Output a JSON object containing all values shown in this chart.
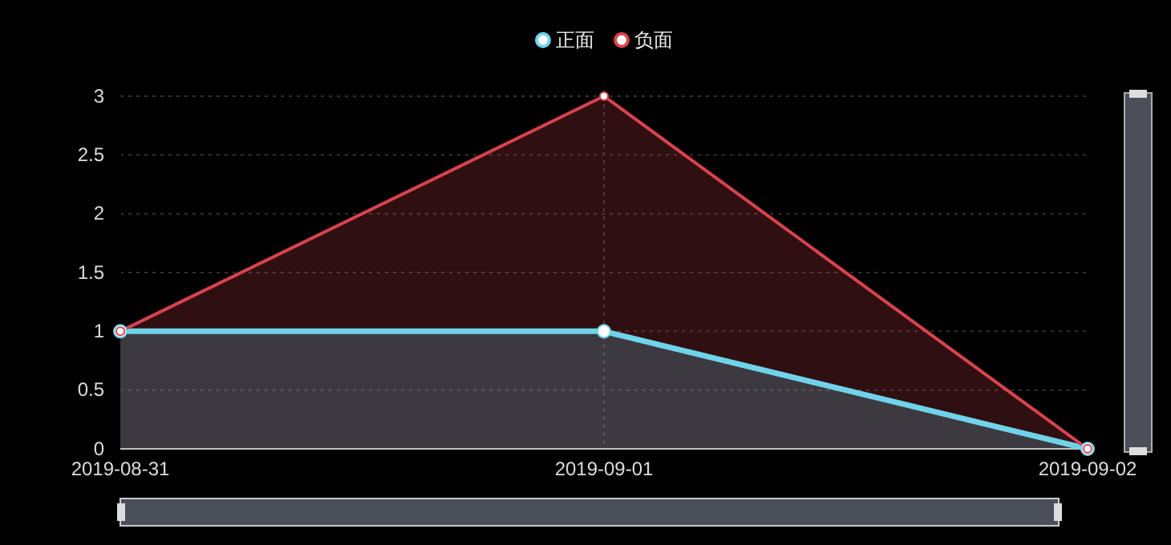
{
  "chart_data": {
    "type": "area",
    "categories": [
      "2019-08-31",
      "2019-09-01",
      "2019-09-02"
    ],
    "series": [
      {
        "name": "正面",
        "color": "#6fd3ea",
        "values": [
          1,
          1,
          0
        ]
      },
      {
        "name": "负面",
        "color": "#d9434e",
        "values": [
          1,
          3,
          0
        ]
      }
    ],
    "ylim": [
      0,
      3
    ],
    "yticks": [
      0,
      0.5,
      1,
      1.5,
      2,
      2.5,
      3
    ],
    "grid": true,
    "legend": "top",
    "marker": "circle",
    "line_style": "solid"
  }
}
